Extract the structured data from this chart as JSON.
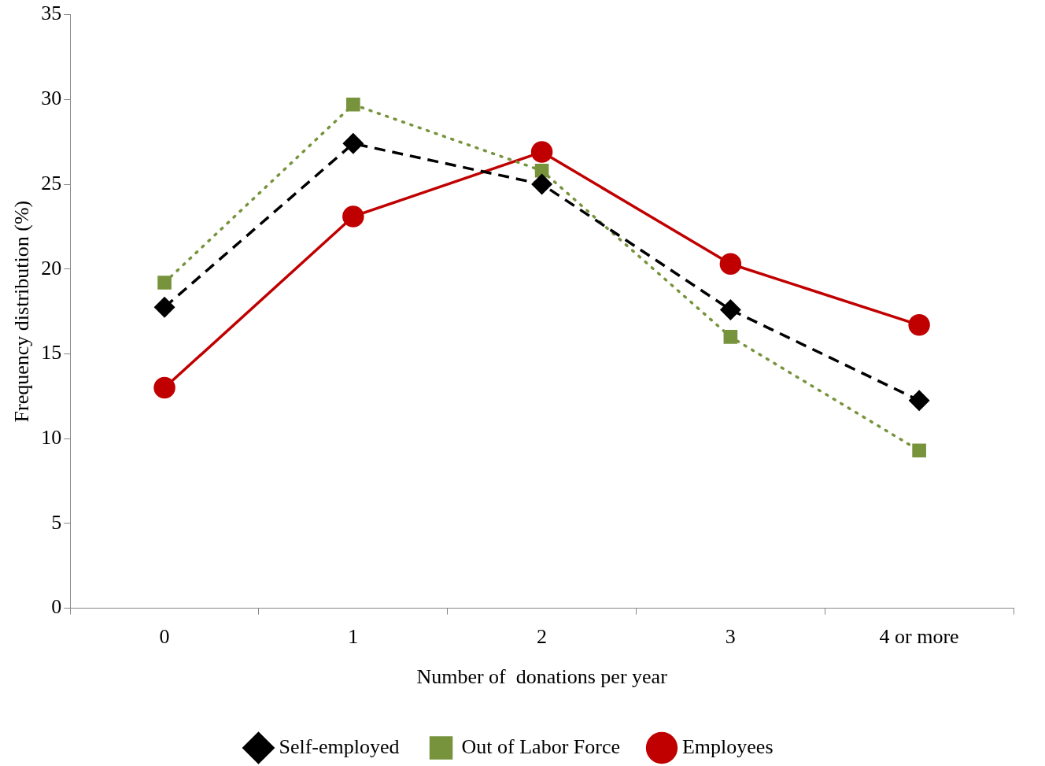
{
  "chart_data": {
    "type": "line",
    "xlabel": "Number of  donations per year",
    "ylabel": "Frequency distribution (%)",
    "categories": [
      "0",
      "1",
      "2",
      "3",
      "4 or more"
    ],
    "series": [
      {
        "name": "Self-employed",
        "color": "#000000",
        "values": [
          17.75,
          27.4,
          25.0,
          17.6,
          12.25
        ],
        "marker": "diamond",
        "line_style": "dashed"
      },
      {
        "name": "Out of Labor Force",
        "color": "#77933c",
        "values": [
          19.2,
          29.7,
          25.8,
          16.0,
          9.3
        ],
        "marker": "square",
        "line_style": "dotted"
      },
      {
        "name": "Employees",
        "color": "#c00000",
        "values": [
          13.0,
          23.1,
          26.9,
          20.3,
          16.7
        ],
        "marker": "circle",
        "line_style": "solid"
      }
    ],
    "ylim": [
      0,
      35
    ],
    "yticks": [
      0,
      5,
      10,
      15,
      20,
      25,
      30,
      35
    ],
    "grid": false,
    "legend": "bottom"
  }
}
